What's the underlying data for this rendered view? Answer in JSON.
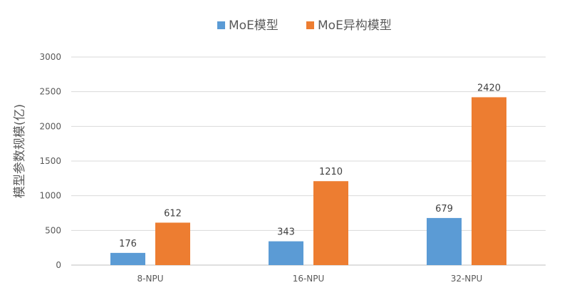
{
  "chart_data": {
    "type": "bar",
    "categories": [
      "8-NPU",
      "16-NPU",
      "32-NPU"
    ],
    "series": [
      {
        "name": "MoE模型",
        "values": [
          176,
          343,
          679
        ],
        "color": "#5B9BD5"
      },
      {
        "name": "MoE异构模型",
        "values": [
          612,
          1210,
          2420
        ],
        "color": "#ED7D31"
      }
    ],
    "ylabel": "模型参数规模(亿)",
    "ylim": [
      0,
      3000
    ],
    "yticks": [
      0,
      500,
      1000,
      1500,
      2000,
      2500,
      3000
    ],
    "grid": true,
    "legend_position": "top"
  }
}
